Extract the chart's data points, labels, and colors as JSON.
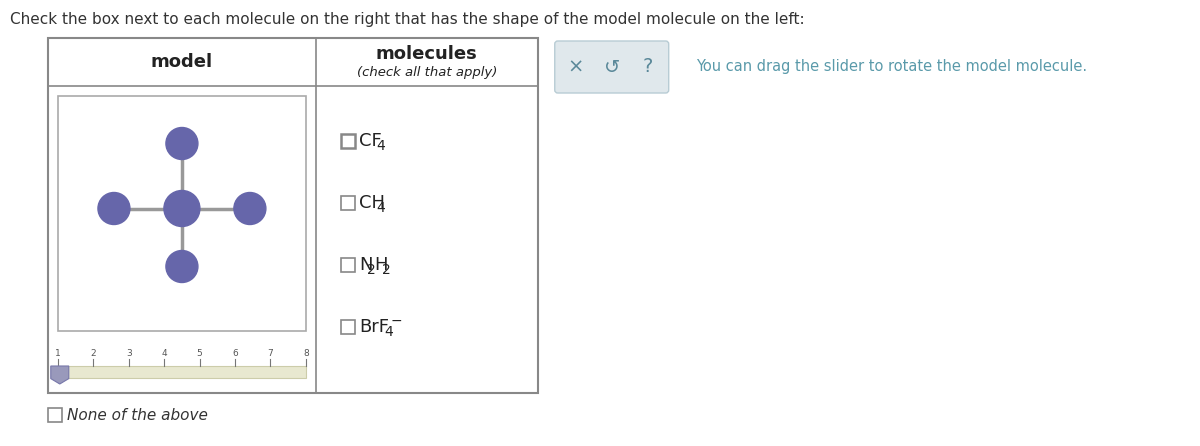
{
  "title_text": "Check the box next to each molecule on the right that has the shape of the model molecule on the left:",
  "title_color": "#333333",
  "title_fontsize": 11,
  "background_color": "#ffffff",
  "model_label": "model",
  "molecules_label": "molecules",
  "molecules_sublabel": "(check all that apply)",
  "outer_box_edge": "#888888",
  "inner_box_edge": "#aaaaaa",
  "inner_box_bg": "#ffffff",
  "atom_color": "#6666aa",
  "bond_color": "#888888",
  "slider_track_bg": "#e8e8d0",
  "slider_track_edge": "#ccccaa",
  "slider_handle_color": "#9999bb",
  "checkbox_edge": "#888888",
  "hint_color": "#5a9aaa",
  "hint_text": "You can drag the slider to rotate the model molecule.",
  "hint_fontsize": 10.5,
  "btn_bg": "#e0e8ec",
  "btn_edge": "#b8ccd4",
  "btn_color": "#5a8899",
  "mol_labels": [
    [
      [
        "CF",
        "n"
      ],
      [
        "4",
        "s"
      ]
    ],
    [
      [
        "CH",
        "n"
      ],
      [
        "4",
        "s"
      ]
    ],
    [
      [
        "N",
        "n"
      ],
      [
        "2",
        "s"
      ],
      [
        "H",
        "n"
      ],
      [
        "2",
        "s"
      ]
    ],
    [
      [
        "BrF",
        "n"
      ],
      [
        "4",
        "s"
      ],
      [
        "−",
        "p"
      ]
    ]
  ],
  "tick_labels": [
    "1",
    "2",
    "3",
    "4",
    "5",
    "6",
    "7",
    "8"
  ]
}
